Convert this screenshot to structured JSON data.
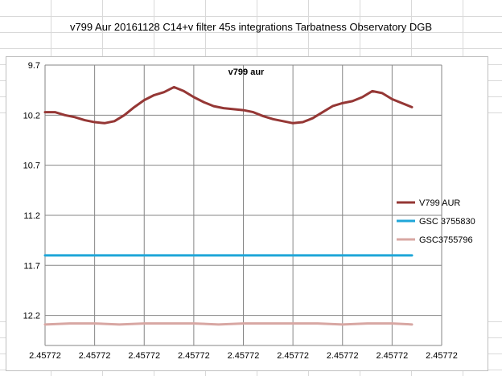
{
  "sheet": {
    "title": "v799 Aur 20161128 C14+v filter 45s integrations Tarbatness Observatory DGB"
  },
  "chart_data": {
    "type": "line",
    "title": "v799 aur",
    "xlabel": "",
    "ylabel": "",
    "y_axis": {
      "min": 9.7,
      "max": 12.5,
      "reversed": true,
      "ticks": [
        9.7,
        10.2,
        10.7,
        11.2,
        11.7,
        12.2
      ]
    },
    "x_axis": {
      "ticks": [
        "2.45772",
        "2.45772",
        "2.45772",
        "2.45772",
        "2.45772",
        "2.45772",
        "2.45772",
        "2.45772",
        "2.45772"
      ],
      "range": [
        0,
        8
      ]
    },
    "grid": true,
    "legend_position": "right",
    "series": [
      {
        "name": "V799 AUR",
        "color": "#953735",
        "x": [
          0.0,
          0.2,
          0.4,
          0.6,
          0.8,
          1.0,
          1.2,
          1.4,
          1.6,
          1.8,
          2.0,
          2.2,
          2.4,
          2.6,
          2.8,
          3.0,
          3.2,
          3.4,
          3.6,
          3.8,
          4.0,
          4.2,
          4.4,
          4.6,
          4.8,
          5.0,
          5.2,
          5.4,
          5.6,
          5.8,
          6.0,
          6.2,
          6.4,
          6.6,
          6.8,
          7.0,
          7.2,
          7.4
        ],
        "y": [
          10.17,
          10.17,
          10.2,
          10.22,
          10.25,
          10.27,
          10.28,
          10.26,
          10.2,
          10.12,
          10.05,
          10.0,
          9.97,
          9.92,
          9.96,
          10.02,
          10.07,
          10.11,
          10.13,
          10.14,
          10.15,
          10.17,
          10.21,
          10.24,
          10.26,
          10.28,
          10.27,
          10.23,
          10.17,
          10.11,
          10.08,
          10.06,
          10.02,
          9.96,
          9.98,
          10.04,
          10.08,
          10.12
        ]
      },
      {
        "name": "GSC 3755830",
        "color": "#1fa6d8",
        "x": [
          0.0,
          7.4
        ],
        "y": [
          11.6,
          11.6
        ]
      },
      {
        "name": "GSC3755796",
        "color": "#d8a7a3",
        "x": [
          0.0,
          0.5,
          1.0,
          1.5,
          2.0,
          2.5,
          3.0,
          3.5,
          4.0,
          4.5,
          5.0,
          5.5,
          6.0,
          6.5,
          7.0,
          7.4
        ],
        "y": [
          12.29,
          12.28,
          12.28,
          12.29,
          12.28,
          12.28,
          12.28,
          12.29,
          12.28,
          12.28,
          12.28,
          12.28,
          12.29,
          12.28,
          12.28,
          12.29
        ]
      }
    ]
  }
}
